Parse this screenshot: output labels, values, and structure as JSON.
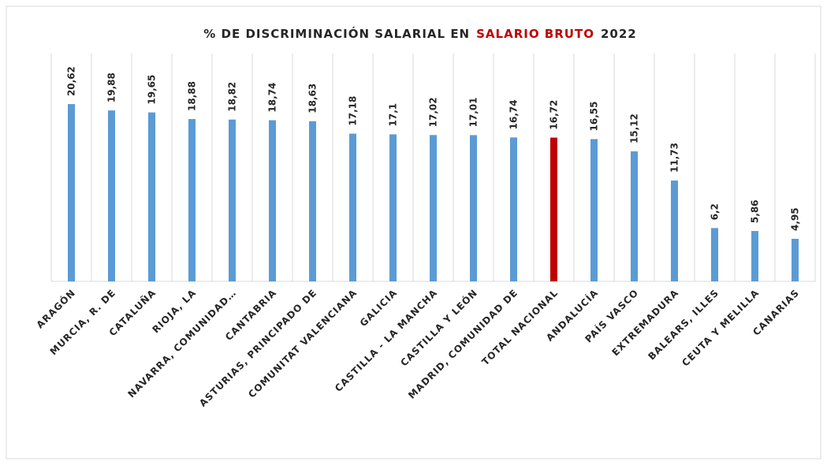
{
  "chart_data": {
    "type": "bar",
    "title": [
      "% DE DISCRIMINACIÓN SALARIAL EN",
      "SALARIO BRUTO",
      "2022"
    ],
    "title_colors": [
      "#262626",
      "#c00000",
      "#262626"
    ],
    "categories": [
      "ARAGÓN",
      "MURCIA, R. DE",
      "CATALUÑA",
      "RIOJA, LA",
      "NAVARRA, COMUNIDAD…",
      "CANTABRIA",
      "ASTURIAS, PRINCIPADO DE",
      "COMUNITAT VALENCIANA",
      "GALICIA",
      "CASTILLA - LA MANCHA",
      "CASTILLA Y LEÓN",
      "MADRID, COMUNIDAD DE",
      "TOTAL NACIONAL",
      "ANDALUCÍA",
      "PAÍS VASCO",
      "EXTREMADURA",
      "BALEARS, ILLES",
      "CEUTA Y MELILLA",
      "CANARIAS"
    ],
    "values": [
      20.62,
      19.88,
      19.65,
      18.88,
      18.82,
      18.74,
      18.63,
      17.18,
      17.1,
      17.02,
      17.01,
      16.74,
      16.72,
      16.55,
      15.12,
      11.73,
      6.2,
      5.86,
      4.95
    ],
    "value_labels": [
      "20,62",
      "19,88",
      "19,65",
      "18,88",
      "18,82",
      "18,74",
      "18,63",
      "17,18",
      "17,1",
      "17,02",
      "17,01",
      "16,74",
      "16,72",
      "16,55",
      "15,12",
      "11,73",
      "6,2",
      "5,86",
      "4,95"
    ],
    "colors": [
      "#5b9bd5",
      "#5b9bd5",
      "#5b9bd5",
      "#5b9bd5",
      "#5b9bd5",
      "#5b9bd5",
      "#5b9bd5",
      "#5b9bd5",
      "#5b9bd5",
      "#5b9bd5",
      "#5b9bd5",
      "#5b9bd5",
      "#c00000",
      "#5b9bd5",
      "#5b9bd5",
      "#5b9bd5",
      "#5b9bd5",
      "#5b9bd5",
      "#5b9bd5"
    ],
    "ylim": [
      0,
      22
    ]
  }
}
